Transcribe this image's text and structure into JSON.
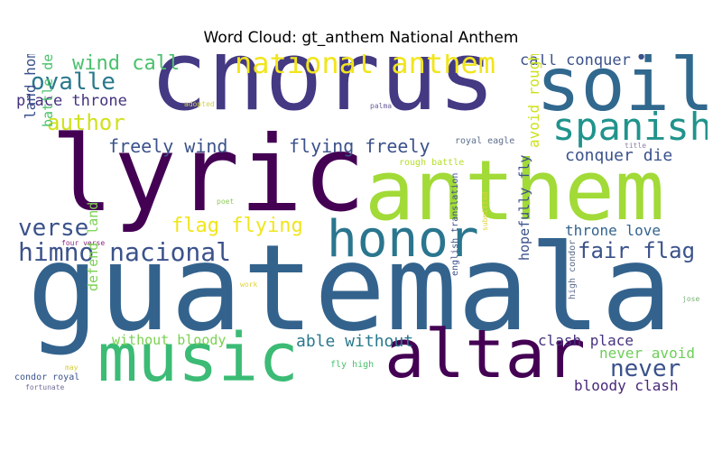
{
  "title": "Word Cloud: gt_anthem National Anthem",
  "words": [
    {
      "text": "guatemala",
      "color": "#33638d"
    },
    {
      "text": "chorus",
      "color": "#443983"
    },
    {
      "text": "lyric",
      "color": "#440154"
    },
    {
      "text": "anthem",
      "color": "#a2da37"
    },
    {
      "text": "soil",
      "color": "#31688e"
    },
    {
      "text": "music",
      "color": "#3bbb75"
    },
    {
      "text": "altar",
      "color": "#440154"
    },
    {
      "text": "honor",
      "color": "#2a768e"
    },
    {
      "text": "spanish",
      "color": "#20938c"
    },
    {
      "text": "national anthem",
      "color": "#f1e51d"
    },
    {
      "text": "himno nacional",
      "color": "#3b528b"
    },
    {
      "text": "ovalle",
      "color": "#2a788e"
    },
    {
      "text": "verse",
      "color": "#3b528b"
    },
    {
      "text": "never",
      "color": "#3b528b"
    },
    {
      "text": "author",
      "color": "#d0e11c"
    },
    {
      "text": "fair flag",
      "color": "#3b528b"
    },
    {
      "text": "wind call",
      "color": "#4ac16d"
    },
    {
      "text": "flag flying",
      "color": "#f1e51d"
    },
    {
      "text": "freely wind",
      "color": "#3b528b"
    },
    {
      "text": "flying freely",
      "color": "#3b528b"
    },
    {
      "text": "conquer die",
      "color": "#3b528b"
    },
    {
      "text": "call conquer",
      "color": "#3b528b"
    },
    {
      "text": "able without",
      "color": "#2a788e"
    },
    {
      "text": "place throne",
      "color": "#46327e"
    },
    {
      "text": "throne love",
      "color": "#33638d"
    },
    {
      "text": "clash place",
      "color": "#46327e"
    },
    {
      "text": "bloody clash",
      "color": "#482878"
    },
    {
      "text": "never avoid",
      "color": "#6ece58"
    },
    {
      "text": "without bloody",
      "color": "#7ad151"
    },
    {
      "text": "rough battle",
      "color": "#b5de2b"
    },
    {
      "text": "land home",
      "color": "#3b528b"
    },
    {
      "text": "battle defend",
      "color": "#4ac16d"
    },
    {
      "text": "defend land",
      "color": "#7ad151"
    },
    {
      "text": "avoid rough",
      "color": "#cde11d"
    },
    {
      "text": "hopefully fly",
      "color": "#3b528b"
    },
    {
      "text": "royal eagle",
      "color": "#5d6e8c"
    },
    {
      "text": "condor royal",
      "color": "#3b528b"
    },
    {
      "text": "english translation",
      "color": "#3b528b"
    },
    {
      "text": "high condor",
      "color": "#5d6e8c"
    },
    {
      "text": "fly high",
      "color": "#4ac16d"
    },
    {
      "text": "four verse",
      "color": "#8c2981"
    },
    {
      "text": "fortunate",
      "color": "#6f6f9a"
    },
    {
      "text": "submitted",
      "color": "#e0d33a"
    },
    {
      "text": "adopted",
      "color": "#d2cf55"
    },
    {
      "text": "palma",
      "color": "#6a5f9a"
    },
    {
      "text": "title",
      "color": "#8d7fa8"
    },
    {
      "text": "poet",
      "color": "#8ecb58"
    },
    {
      "text": "work",
      "color": "#e0d33a"
    },
    {
      "text": "may",
      "color": "#d8d03a"
    },
    {
      "text": "jose",
      "color": "#7ab07a"
    },
    {
      "text": "•",
      "color": "#3b528b"
    }
  ]
}
